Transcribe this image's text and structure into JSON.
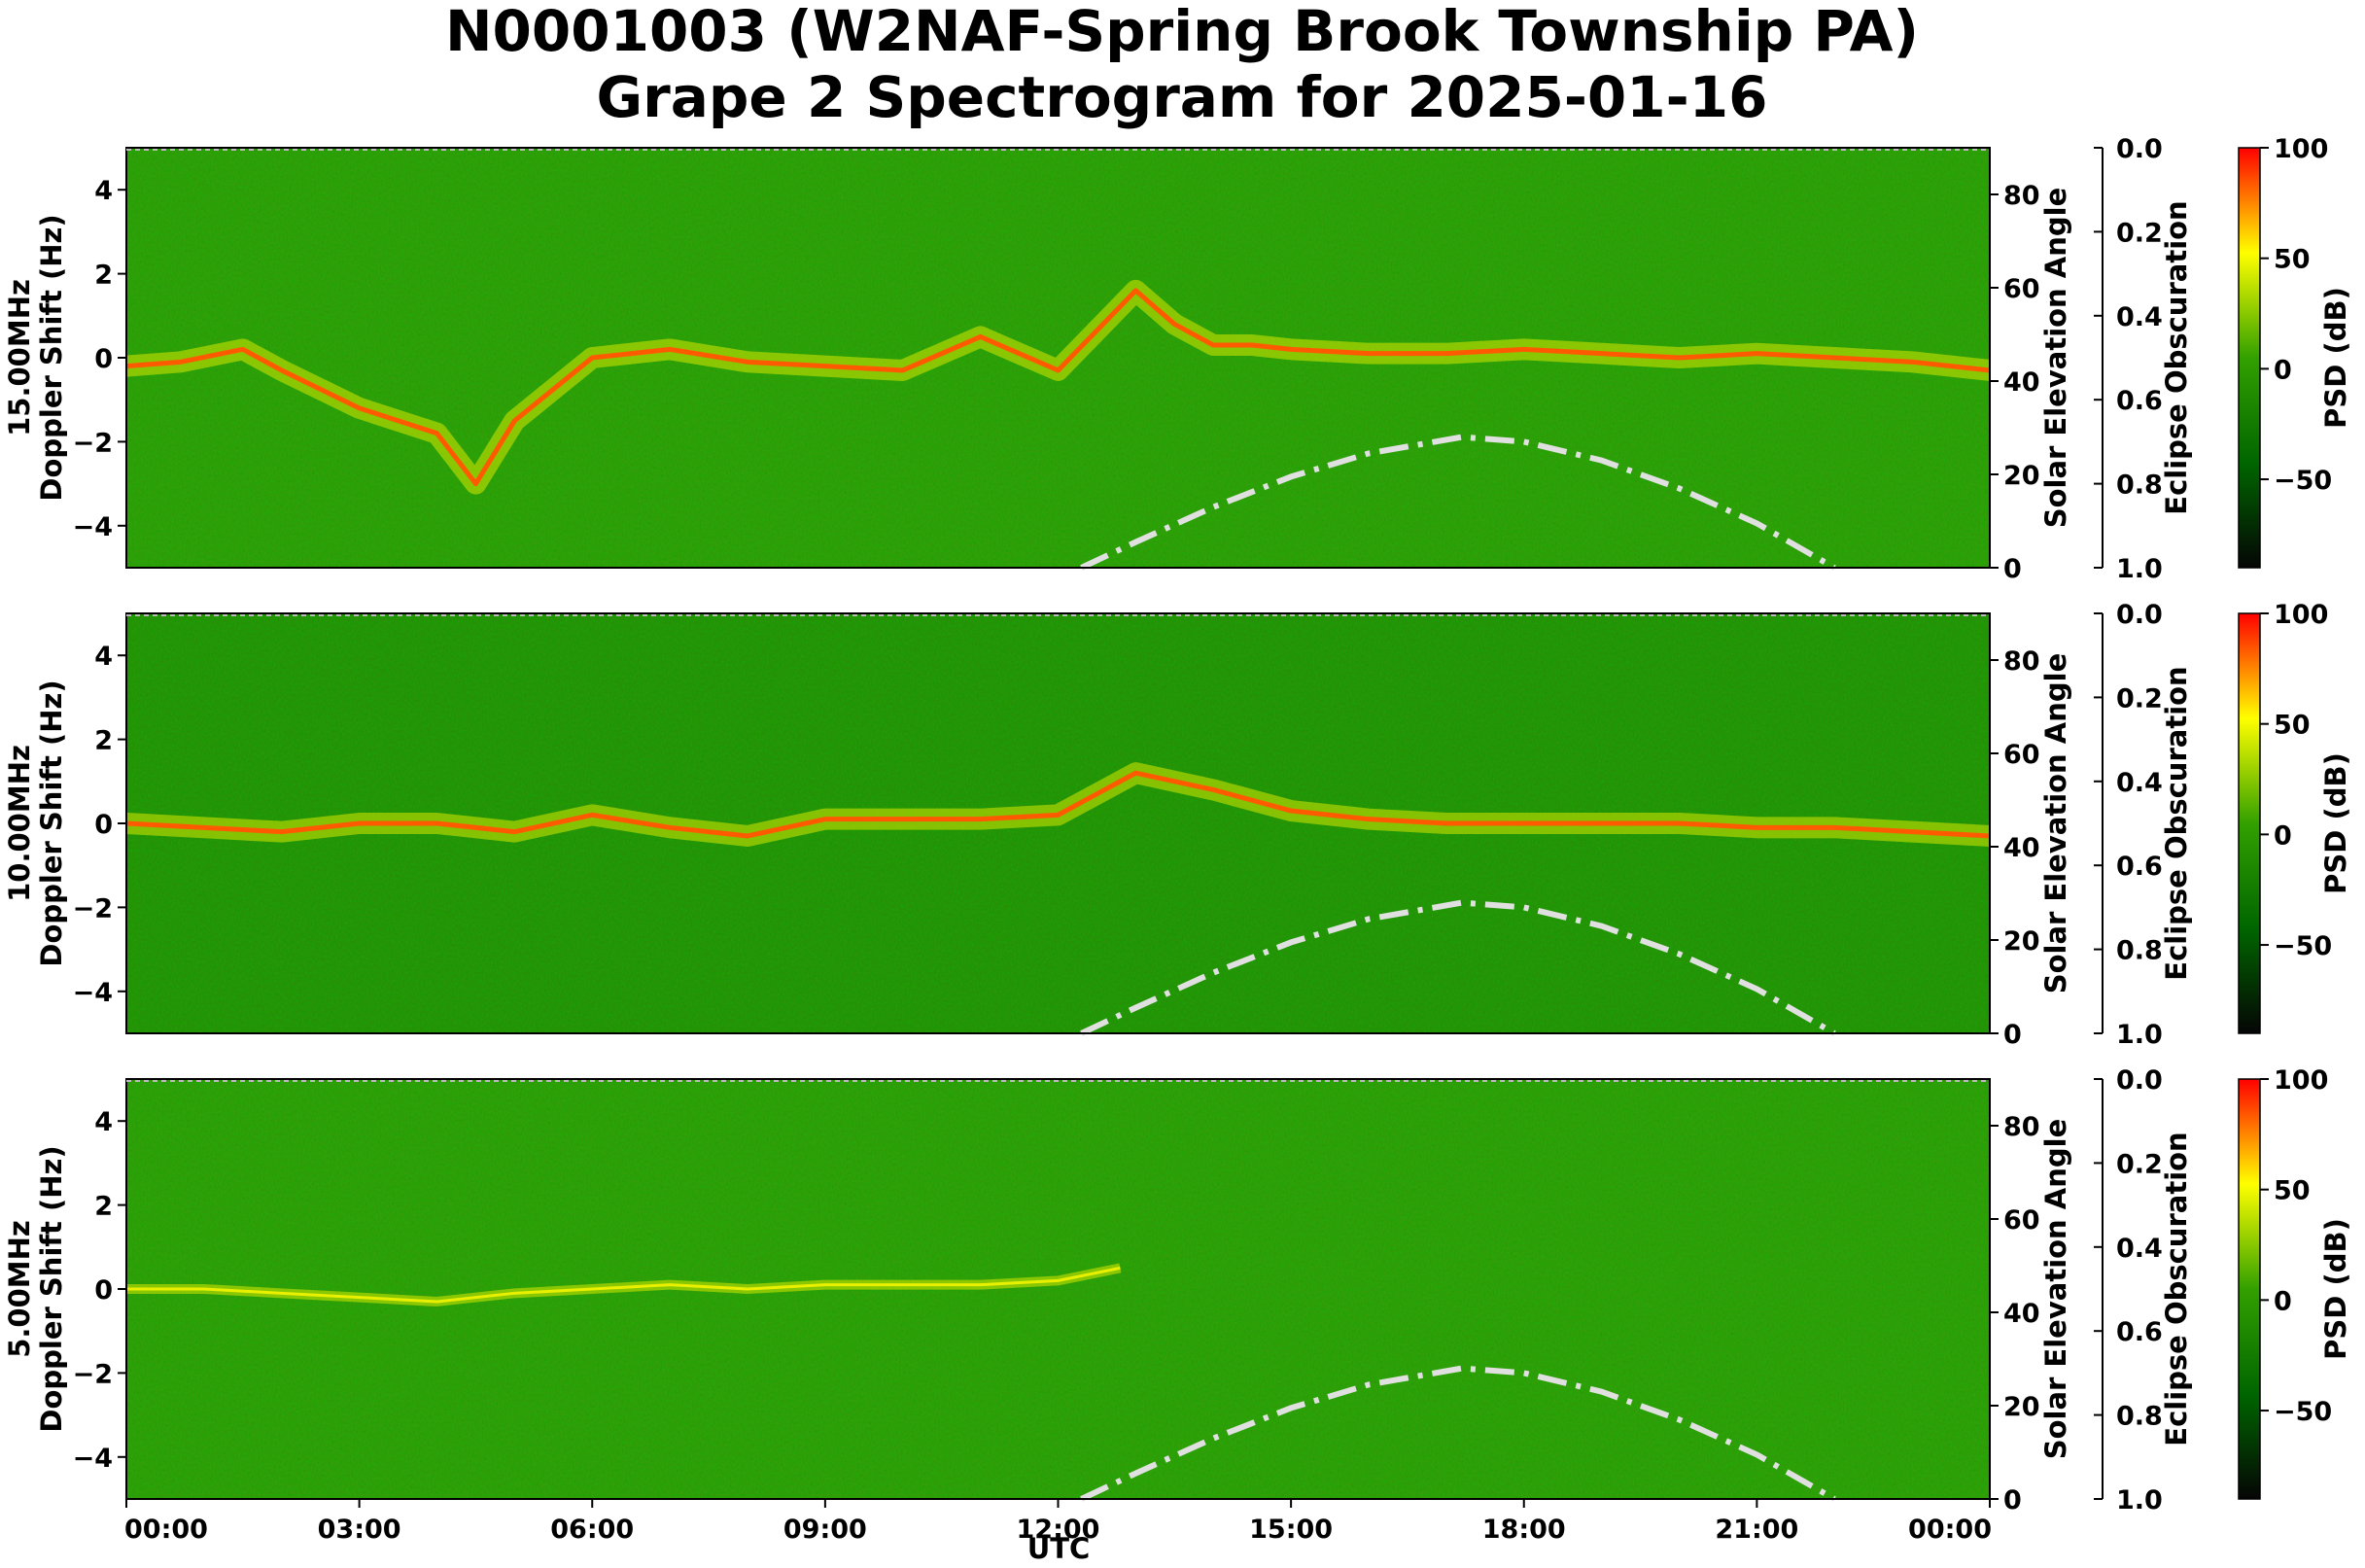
{
  "title_line1": "N0001003 (W2NAF-Spring Brook Township PA)",
  "title_line2": "Grape 2 Spectrogram for 2025-01-16",
  "chart_data": {
    "type": "heatmap",
    "x_label": "UTC",
    "x_ticks": [
      "00:00",
      "03:00",
      "06:00",
      "09:00",
      "12:00",
      "15:00",
      "18:00",
      "21:00",
      "00:00"
    ],
    "xlim_hours": [
      0,
      24
    ],
    "y_label": "Doppler Shift (Hz)",
    "ylim": [
      -5,
      5
    ],
    "y_ticks": [
      "−4",
      "−2",
      "0",
      "2",
      "4"
    ],
    "right_axis": {
      "label": "Solar Elevation Angle",
      "ylim": [
        0,
        90
      ],
      "ticks": [
        "0",
        "20",
        "40",
        "60",
        "80"
      ]
    },
    "eclipse_axis": {
      "label": "Eclipse Obscuration",
      "ylim": [
        1.0,
        0.0
      ],
      "ticks": [
        "0.0",
        "0.2",
        "0.4",
        "0.6",
        "0.8",
        "1.0"
      ]
    },
    "colorbar": {
      "label": "PSD (dB)",
      "range": [
        -90,
        100
      ],
      "ticks": [
        "100",
        "50",
        "0",
        "−50"
      ],
      "tick_values": [
        100,
        50,
        0,
        -50
      ],
      "colors": [
        "#050505",
        "#006600",
        "#33a000",
        "#ffff00",
        "#ff0000"
      ]
    },
    "solar_elevation": {
      "style": "dash-dot",
      "color": "#e0e0e0",
      "peak_hour": 17.2,
      "peak_deg": 28,
      "hours": [
        12.3,
        13,
        14,
        15,
        16,
        17.2,
        18,
        19,
        20,
        21,
        22
      ],
      "degrees": [
        0,
        5.5,
        13,
        19.5,
        24.5,
        28,
        27,
        23,
        17,
        9.5,
        0
      ]
    },
    "panels": [
      {
        "name": "15.00MHz",
        "trace_hours": [
          0,
          0.7,
          1.5,
          2,
          3,
          4,
          4.5,
          5,
          6,
          7,
          8,
          9,
          10,
          11,
          12,
          13,
          13.5,
          14,
          14.5,
          15,
          16,
          17,
          18,
          19,
          20,
          21,
          22,
          23,
          24
        ],
        "trace_hz": [
          -0.2,
          -0.1,
          0.2,
          -0.3,
          -1.2,
          -1.8,
          -3.0,
          -1.5,
          0,
          0.2,
          -0.1,
          -0.2,
          -0.3,
          0.5,
          -0.3,
          1.6,
          0.8,
          0.3,
          0.3,
          0.2,
          0.1,
          0.1,
          0.2,
          0.1,
          0,
          0.1,
          0,
          -0.1,
          -0.3
        ]
      },
      {
        "name": "10.00MHz",
        "trace_hours": [
          0,
          1,
          2,
          3,
          4,
          5,
          6,
          7,
          8,
          9,
          10,
          11,
          12,
          13,
          14,
          15,
          16,
          17,
          18,
          19,
          20,
          21,
          22,
          23,
          24
        ],
        "trace_hz": [
          0,
          -0.1,
          -0.2,
          0,
          0,
          -0.2,
          0.2,
          -0.1,
          -0.3,
          0.1,
          0.1,
          0.1,
          0.2,
          1.2,
          0.8,
          0.3,
          0.1,
          0,
          0,
          0,
          0,
          -0.1,
          -0.1,
          -0.2,
          -0.3
        ]
      },
      {
        "name": "5.00MHz",
        "trace_hours": [
          0,
          1,
          2,
          3,
          4,
          5,
          6,
          7,
          8,
          9,
          10,
          11,
          12,
          12.8
        ],
        "trace_hz": [
          0,
          0,
          -0.1,
          -0.2,
          -0.3,
          -0.1,
          0,
          0.1,
          0,
          0.1,
          0.1,
          0.1,
          0.2,
          0.5
        ]
      }
    ]
  }
}
